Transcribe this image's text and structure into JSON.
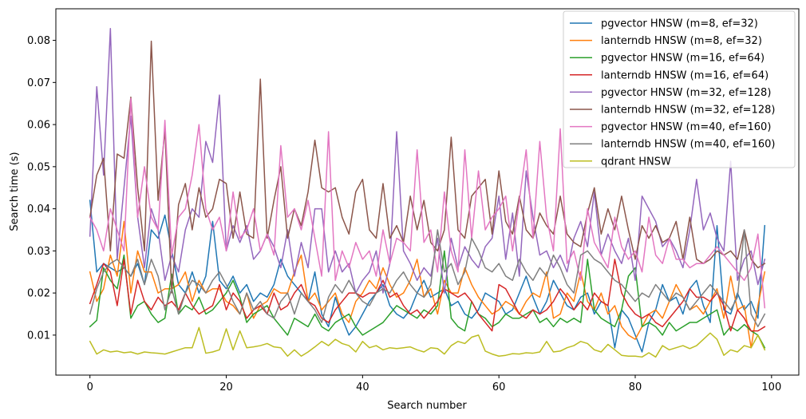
{
  "chart_data": {
    "type": "line",
    "xlabel": "Search number",
    "ylabel": "Search time (s)",
    "xlim": [
      -5,
      104
    ],
    "ylim": [
      0.0005,
      0.0875
    ],
    "xticks": [
      0,
      20,
      40,
      60,
      80,
      100
    ],
    "xtick_labels": [
      "0",
      "20",
      "40",
      "60",
      "80",
      "100"
    ],
    "yticks": [
      0.01,
      0.02,
      0.03,
      0.04,
      0.05,
      0.06,
      0.07,
      0.08
    ],
    "ytick_labels": [
      "0.01",
      "0.02",
      "0.03",
      "0.04",
      "0.05",
      "0.06",
      "0.07",
      "0.08"
    ],
    "legend_position": "top-right",
    "grid": false,
    "series": [
      {
        "name": "pgvector HNSW (m=8, ef=32)",
        "color": "#1f77b4",
        "values": [
          0.042,
          0.025,
          0.027,
          0.026,
          0.025,
          0.026,
          0.024,
          0.027,
          0.022,
          0.035,
          0.033,
          0.0385,
          0.03,
          0.022,
          0.02,
          0.025,
          0.02,
          0.024,
          0.037,
          0.023,
          0.021,
          0.024,
          0.02,
          0.022,
          0.018,
          0.02,
          0.019,
          0.022,
          0.028,
          0.024,
          0.022,
          0.02,
          0.018,
          0.025,
          0.015,
          0.012,
          0.019,
          0.014,
          0.01,
          0.012,
          0.015,
          0.018,
          0.02,
          0.022,
          0.017,
          0.015,
          0.014,
          0.016,
          0.02,
          0.023,
          0.019,
          0.02,
          0.021,
          0.017,
          0.018,
          0.015,
          0.014,
          0.016,
          0.02,
          0.019,
          0.018,
          0.015,
          0.016,
          0.02,
          0.024,
          0.019,
          0.015,
          0.018,
          0.023,
          0.02,
          0.017,
          0.016,
          0.019,
          0.02,
          0.015,
          0.018,
          0.017,
          0.007,
          0.016,
          0.014,
          0.01,
          0.006,
          0.013,
          0.016,
          0.022,
          0.018,
          0.019,
          0.015,
          0.021,
          0.023,
          0.017,
          0.013,
          0.036,
          0.016,
          0.015,
          0.02,
          0.016,
          0.018,
          0.014,
          0.036
        ]
      },
      {
        "name": "lanterndb HNSW (m=8, ef=32)",
        "color": "#ff7f0e",
        "values": [
          0.025,
          0.018,
          0.021,
          0.029,
          0.024,
          0.037,
          0.02,
          0.03,
          0.025,
          0.025,
          0.02,
          0.021,
          0.021,
          0.022,
          0.025,
          0.018,
          0.023,
          0.02,
          0.021,
          0.021,
          0.018,
          0.017,
          0.015,
          0.02,
          0.014,
          0.017,
          0.018,
          0.021,
          0.02,
          0.02,
          0.025,
          0.029,
          0.018,
          0.02,
          0.016,
          0.018,
          0.02,
          0.015,
          0.013,
          0.018,
          0.02,
          0.023,
          0.021,
          0.026,
          0.022,
          0.019,
          0.02,
          0.023,
          0.028,
          0.019,
          0.021,
          0.015,
          0.023,
          0.02,
          0.02,
          0.026,
          0.022,
          0.019,
          0.017,
          0.015,
          0.016,
          0.018,
          0.017,
          0.015,
          0.018,
          0.02,
          0.019,
          0.025,
          0.014,
          0.015,
          0.02,
          0.018,
          0.025,
          0.018,
          0.016,
          0.02,
          0.015,
          0.017,
          0.012,
          0.01,
          0.009,
          0.012,
          0.015,
          0.016,
          0.014,
          0.018,
          0.022,
          0.019,
          0.016,
          0.017,
          0.015,
          0.018,
          0.021,
          0.014,
          0.024,
          0.016,
          0.017,
          0.007,
          0.017,
          0.025
        ]
      },
      {
        "name": "pgvector HNSW (m=16, ef=64)",
        "color": "#2ca02c",
        "values": [
          0.012,
          0.0135,
          0.026,
          0.023,
          0.021,
          0.029,
          0.014,
          0.017,
          0.018,
          0.015,
          0.013,
          0.014,
          0.0245,
          0.015,
          0.017,
          0.016,
          0.019,
          0.015,
          0.016,
          0.018,
          0.02,
          0.023,
          0.019,
          0.013,
          0.015,
          0.016,
          0.017,
          0.014,
          0.012,
          0.01,
          0.014,
          0.013,
          0.012,
          0.015,
          0.012,
          0.011,
          0.013,
          0.014,
          0.015,
          0.012,
          0.01,
          0.011,
          0.012,
          0.013,
          0.015,
          0.017,
          0.016,
          0.015,
          0.014,
          0.016,
          0.015,
          0.017,
          0.03,
          0.014,
          0.012,
          0.011,
          0.018,
          0.015,
          0.014,
          0.012,
          0.013,
          0.015,
          0.014,
          0.014,
          0.015,
          0.016,
          0.013,
          0.014,
          0.012,
          0.014,
          0.013,
          0.014,
          0.013,
          0.028,
          0.016,
          0.014,
          0.013,
          0.012,
          0.016,
          0.024,
          0.026,
          0.012,
          0.013,
          0.012,
          0.01,
          0.013,
          0.011,
          0.012,
          0.013,
          0.013,
          0.014,
          0.015,
          0.016,
          0.01,
          0.012,
          0.011,
          0.0125,
          0.011,
          0.01,
          0.007
        ]
      },
      {
        "name": "lanterndb HNSW (m=16, ef=64)",
        "color": "#d62728",
        "values": [
          0.0175,
          0.022,
          0.027,
          0.025,
          0.017,
          0.028,
          0.015,
          0.023,
          0.018,
          0.016,
          0.019,
          0.017,
          0.018,
          0.016,
          0.02,
          0.017,
          0.015,
          0.016,
          0.017,
          0.022,
          0.016,
          0.02,
          0.018,
          0.014,
          0.016,
          0.017,
          0.015,
          0.02,
          0.016,
          0.017,
          0.02,
          0.022,
          0.018,
          0.017,
          0.014,
          0.013,
          0.016,
          0.018,
          0.02,
          0.02,
          0.019,
          0.02,
          0.02,
          0.023,
          0.019,
          0.02,
          0.017,
          0.015,
          0.016,
          0.014,
          0.016,
          0.018,
          0.021,
          0.02,
          0.019,
          0.02,
          0.018,
          0.015,
          0.013,
          0.011,
          0.022,
          0.021,
          0.018,
          0.015,
          0.014,
          0.016,
          0.015,
          0.016,
          0.018,
          0.021,
          0.019,
          0.016,
          0.018,
          0.016,
          0.02,
          0.018,
          0.017,
          0.028,
          0.02,
          0.017,
          0.015,
          0.014,
          0.015,
          0.013,
          0.012,
          0.014,
          0.016,
          0.018,
          0.021,
          0.019,
          0.019,
          0.018,
          0.02,
          0.017,
          0.011,
          0.016,
          0.014,
          0.011,
          0.011,
          0.012
        ]
      },
      {
        "name": "pgvector HNSW (m=32, ef=128)",
        "color": "#9467bd",
        "values": [
          0.0335,
          0.069,
          0.048,
          0.0828,
          0.028,
          0.045,
          0.062,
          0.038,
          0.026,
          0.04,
          0.035,
          0.023,
          0.029,
          0.025,
          0.035,
          0.04,
          0.038,
          0.056,
          0.051,
          0.067,
          0.03,
          0.036,
          0.032,
          0.036,
          0.028,
          0.03,
          0.034,
          0.031,
          0.026,
          0.035,
          0.024,
          0.032,
          0.026,
          0.04,
          0.04,
          0.025,
          0.03,
          0.025,
          0.027,
          0.02,
          0.023,
          0.025,
          0.03,
          0.02,
          0.027,
          0.0583,
          0.03,
          0.027,
          0.023,
          0.026,
          0.024,
          0.033,
          0.02,
          0.033,
          0.026,
          0.031,
          0.028,
          0.026,
          0.031,
          0.033,
          0.043,
          0.028,
          0.039,
          0.024,
          0.049,
          0.038,
          0.029,
          0.03,
          0.026,
          0.029,
          0.025,
          0.033,
          0.037,
          0.031,
          0.044,
          0.029,
          0.034,
          0.03,
          0.027,
          0.033,
          0.023,
          0.043,
          0.04,
          0.037,
          0.031,
          0.033,
          0.03,
          0.026,
          0.035,
          0.047,
          0.035,
          0.039,
          0.033,
          0.03,
          0.0513,
          0.023,
          0.028,
          0.03,
          0.022,
          0.028
        ]
      },
      {
        "name": "lanterndb HNSW (m=32, ef=128)",
        "color": "#8c564b",
        "values": [
          0.038,
          0.048,
          0.052,
          0.03,
          0.053,
          0.052,
          0.0665,
          0.045,
          0.03,
          0.0798,
          0.042,
          0.0588,
          0.02,
          0.041,
          0.046,
          0.035,
          0.045,
          0.038,
          0.04,
          0.047,
          0.046,
          0.033,
          0.044,
          0.034,
          0.033,
          0.0708,
          0.033,
          0.042,
          0.05,
          0.033,
          0.04,
          0.036,
          0.044,
          0.0563,
          0.045,
          0.044,
          0.045,
          0.038,
          0.034,
          0.044,
          0.047,
          0.035,
          0.033,
          0.046,
          0.033,
          0.036,
          0.032,
          0.043,
          0.035,
          0.042,
          0.032,
          0.03,
          0.035,
          0.057,
          0.035,
          0.033,
          0.043,
          0.045,
          0.047,
          0.034,
          0.049,
          0.037,
          0.034,
          0.043,
          0.035,
          0.033,
          0.039,
          0.036,
          0.034,
          0.043,
          0.034,
          0.032,
          0.031,
          0.039,
          0.045,
          0.034,
          0.04,
          0.035,
          0.043,
          0.035,
          0.028,
          0.036,
          0.033,
          0.036,
          0.032,
          0.033,
          0.037,
          0.028,
          0.038,
          0.028,
          0.027,
          0.028,
          0.03,
          0.029,
          0.03,
          0.028,
          0.035,
          0.028,
          0.026,
          0.027
        ]
      },
      {
        "name": "pgvector HNSW (m=40, ef=160)",
        "color": "#e377c2",
        "values": [
          0.038,
          0.035,
          0.03,
          0.04,
          0.035,
          0.03,
          0.0662,
          0.038,
          0.05,
          0.038,
          0.035,
          0.061,
          0.029,
          0.038,
          0.04,
          0.048,
          0.06,
          0.04,
          0.035,
          0.038,
          0.03,
          0.044,
          0.033,
          0.035,
          0.04,
          0.03,
          0.034,
          0.029,
          0.055,
          0.038,
          0.04,
          0.035,
          0.042,
          0.033,
          0.024,
          0.0583,
          0.023,
          0.03,
          0.026,
          0.032,
          0.028,
          0.03,
          0.024,
          0.035,
          0.027,
          0.033,
          0.032,
          0.03,
          0.054,
          0.032,
          0.035,
          0.025,
          0.044,
          0.03,
          0.025,
          0.054,
          0.033,
          0.049,
          0.035,
          0.038,
          0.04,
          0.043,
          0.03,
          0.042,
          0.054,
          0.033,
          0.056,
          0.038,
          0.03,
          0.059,
          0.027,
          0.03,
          0.023,
          0.04,
          0.032,
          0.029,
          0.026,
          0.038,
          0.031,
          0.028,
          0.03,
          0.025,
          0.038,
          0.029,
          0.027,
          0.033,
          0.028,
          0.028,
          0.026,
          0.027,
          0.027,
          0.029,
          0.031,
          0.029,
          0.027,
          0.025,
          0.023,
          0.026,
          0.034,
          0.0165
        ]
      },
      {
        "name": "lanterndb HNSW (m=40, ef=160)",
        "color": "#7f7f7f",
        "values": [
          0.015,
          0.021,
          0.025,
          0.027,
          0.028,
          0.026,
          0.024,
          0.028,
          0.022,
          0.028,
          0.024,
          0.016,
          0.021,
          0.015,
          0.02,
          0.023,
          0.022,
          0.02,
          0.023,
          0.025,
          0.022,
          0.018,
          0.015,
          0.02,
          0.016,
          0.018,
          0.015,
          0.014,
          0.018,
          0.02,
          0.015,
          0.02,
          0.018,
          0.016,
          0.013,
          0.019,
          0.022,
          0.02,
          0.023,
          0.02,
          0.018,
          0.017,
          0.02,
          0.021,
          0.02,
          0.023,
          0.025,
          0.022,
          0.02,
          0.019,
          0.022,
          0.035,
          0.025,
          0.027,
          0.022,
          0.025,
          0.033,
          0.03,
          0.026,
          0.025,
          0.027,
          0.024,
          0.023,
          0.028,
          0.025,
          0.023,
          0.026,
          0.024,
          0.029,
          0.026,
          0.022,
          0.02,
          0.029,
          0.03,
          0.028,
          0.027,
          0.025,
          0.023,
          0.022,
          0.02,
          0.018,
          0.02,
          0.019,
          0.022,
          0.02,
          0.018,
          0.02,
          0.019,
          0.016,
          0.018,
          0.02,
          0.022,
          0.02,
          0.018,
          0.016,
          0.019,
          0.035,
          0.015,
          0.012,
          0.015
        ]
      },
      {
        "name": "qdrant HNSW",
        "color": "#bcbd22",
        "values": [
          0.0085,
          0.0055,
          0.0065,
          0.006,
          0.0062,
          0.0058,
          0.006,
          0.0055,
          0.006,
          0.0058,
          0.0057,
          0.0055,
          0.006,
          0.0065,
          0.007,
          0.007,
          0.0118,
          0.0057,
          0.006,
          0.0065,
          0.0115,
          0.0065,
          0.011,
          0.007,
          0.0072,
          0.0075,
          0.008,
          0.0072,
          0.007,
          0.005,
          0.0065,
          0.005,
          0.006,
          0.0072,
          0.0085,
          0.0075,
          0.009,
          0.008,
          0.0075,
          0.006,
          0.0085,
          0.007,
          0.0075,
          0.0065,
          0.007,
          0.0068,
          0.007,
          0.0072,
          0.0065,
          0.006,
          0.007,
          0.0068,
          0.0055,
          0.0075,
          0.0085,
          0.008,
          0.0095,
          0.01,
          0.0062,
          0.0055,
          0.005,
          0.0052,
          0.0056,
          0.0055,
          0.0058,
          0.0057,
          0.006,
          0.0085,
          0.006,
          0.0062,
          0.007,
          0.0075,
          0.0085,
          0.008,
          0.0065,
          0.006,
          0.0078,
          0.0065,
          0.0052,
          0.005,
          0.005,
          0.0048,
          0.0058,
          0.0048,
          0.0075,
          0.0065,
          0.007,
          0.0075,
          0.0068,
          0.0075,
          0.009,
          0.0105,
          0.009,
          0.0052,
          0.0065,
          0.006,
          0.0075,
          0.007,
          0.01,
          0.0065
        ]
      }
    ]
  }
}
